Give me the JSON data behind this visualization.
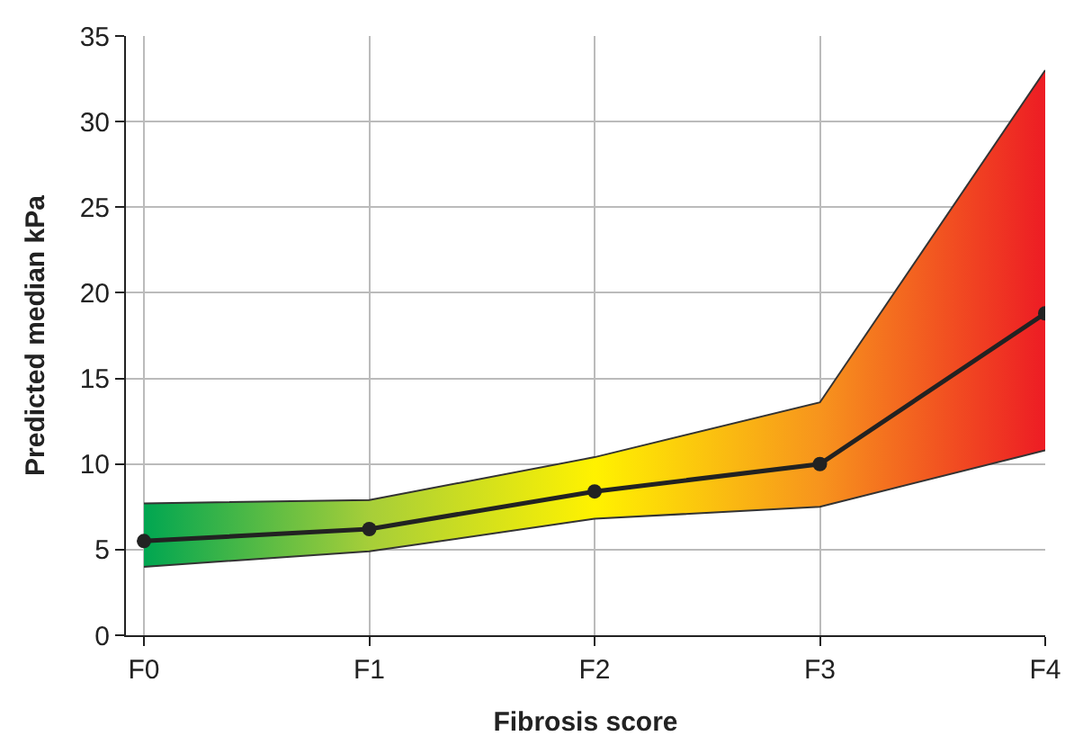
{
  "chart_data": {
    "type": "line",
    "xlabel": "Fibrosis score",
    "ylabel": "Predicted median kPa",
    "categories": [
      "F0",
      "F1",
      "F2",
      "F3",
      "F4"
    ],
    "series": [
      {
        "color": "#222222",
        "values": [
          5.5,
          6.2,
          8.4,
          10.0,
          18.8
        ],
        "lower": [
          4.0,
          4.9,
          6.8,
          7.5,
          10.8
        ],
        "upper": [
          7.7,
          7.9,
          10.4,
          13.6,
          33.0
        ],
        "colors": [
          "#00a651",
          "#a6ce39",
          "#fff200",
          "#f7941d",
          "#ed1c24"
        ]
      },
      {
        "color": "#333333",
        "values": [
          4.0,
          4.9,
          6.8,
          7.5,
          10.8
        ],
        "marker": "none"
      },
      {
        "color": "#333333",
        "values": [
          7.7,
          7.9,
          10.4,
          13.6,
          33.0
        ],
        "marker": "none"
      }
    ],
    "ylim": [
      0,
      35
    ],
    "yticks": [
      0,
      5,
      10,
      15,
      20,
      25,
      30,
      35
    ],
    "grid": true,
    "marker": "circle",
    "line_style": "solid"
  }
}
